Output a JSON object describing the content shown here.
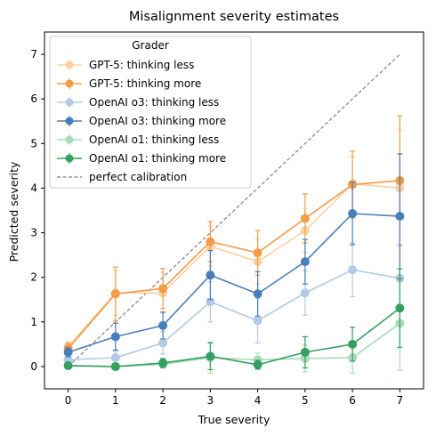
{
  "chart_data": {
    "type": "line",
    "title": "Misalignment severity estimates",
    "xlabel": "True severity",
    "ylabel": "Predicted severity",
    "xlim": [
      -0.5,
      7.5
    ],
    "ylim": [
      -0.5,
      7.5
    ],
    "xticks": [
      0,
      1,
      2,
      3,
      4,
      5,
      6,
      7
    ],
    "yticks": [
      0,
      1,
      2,
      3,
      4,
      5,
      6,
      7
    ],
    "grid": false,
    "legend_title": "Grader",
    "legend_position": "top-left",
    "x": [
      0,
      1,
      2,
      3,
      4,
      5,
      6,
      7
    ],
    "series": [
      {
        "name": "GPT-5: thinking less",
        "color": "#fdd0a2",
        "values": [
          0.45,
          1.65,
          1.65,
          2.7,
          2.35,
          3.05,
          4.1,
          4.0
        ],
        "err": [
          0.1,
          0.5,
          0.45,
          0.45,
          0.5,
          0.5,
          0.6,
          1.3
        ]
      },
      {
        "name": "GPT-5: thinking more",
        "color": "#f39c47",
        "values": [
          0.4,
          1.63,
          1.75,
          2.8,
          2.55,
          3.32,
          4.08,
          4.17
        ],
        "err": [
          0.12,
          0.6,
          0.45,
          0.45,
          0.5,
          0.55,
          0.75,
          1.45
        ]
      },
      {
        "name": "OpenAI o3: thinking less",
        "color": "#b3cae4",
        "values": [
          0.15,
          0.2,
          0.53,
          1.45,
          1.03,
          1.65,
          2.17,
          1.98
        ],
        "err": [
          0.05,
          0.15,
          0.25,
          0.45,
          0.5,
          0.5,
          0.6,
          0.75
        ]
      },
      {
        "name": "OpenAI o3: thinking more",
        "color": "#4a7ebb",
        "values": [
          0.32,
          0.67,
          0.92,
          2.05,
          1.63,
          2.35,
          3.43,
          3.37
        ],
        "err": [
          0.1,
          0.3,
          0.3,
          0.55,
          0.5,
          0.5,
          0.7,
          1.4
        ]
      },
      {
        "name": "OpenAI o1: thinking less",
        "color": "#a8dbb9",
        "values": [
          0.02,
          0.0,
          0.05,
          0.2,
          0.15,
          0.18,
          0.2,
          0.97
        ],
        "err": [
          0.02,
          0.02,
          0.08,
          0.35,
          0.15,
          0.3,
          0.35,
          1.05
        ]
      },
      {
        "name": "OpenAI o1: thinking more",
        "color": "#35a060",
        "values": [
          0.02,
          0.0,
          0.08,
          0.23,
          0.04,
          0.32,
          0.5,
          1.31
        ],
        "err": [
          0.02,
          0.02,
          0.1,
          0.3,
          0.1,
          0.35,
          0.38,
          0.88
        ]
      }
    ],
    "reference_line": {
      "name": "perfect calibration",
      "color": "#808080",
      "style": "dashed",
      "x": [
        0,
        7
      ],
      "y": [
        0,
        7
      ]
    }
  }
}
